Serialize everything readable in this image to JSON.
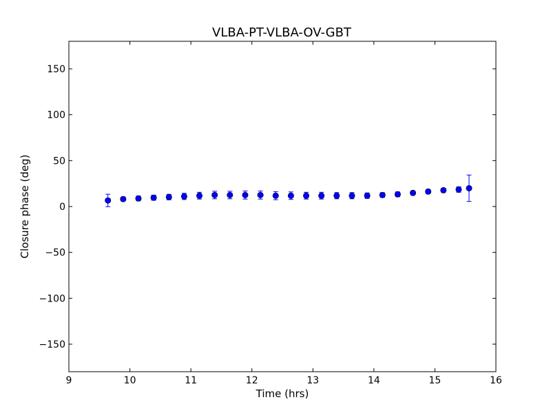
{
  "chart_data": {
    "type": "scatter",
    "title": "VLBA-PT-VLBA-OV-GBT",
    "xlabel": "Time (hrs)",
    "ylabel": "Closure phase (deg)",
    "xlim": [
      9,
      16
    ],
    "ylim": [
      -180,
      180
    ],
    "xticks": [
      9,
      10,
      11,
      12,
      13,
      14,
      15,
      16
    ],
    "yticks": [
      -150,
      -100,
      -50,
      0,
      50,
      100,
      150
    ],
    "xtick_labels": [
      "9",
      "10",
      "11",
      "12",
      "13",
      "14",
      "15",
      "16"
    ],
    "ytick_labels": [
      "−150",
      "−100",
      "−50",
      "0",
      "50",
      "100",
      "150"
    ],
    "grid": false,
    "marker_color": "#0000ff",
    "errorbar_color": "#0000ff",
    "series": [
      {
        "points": [
          {
            "x": 9.64,
            "y": 6.6,
            "err": 6.8
          },
          {
            "x": 9.89,
            "y": 8.1,
            "err": 2.2
          },
          {
            "x": 10.14,
            "y": 8.8,
            "err": 2.6
          },
          {
            "x": 10.39,
            "y": 9.6,
            "err": 2.8
          },
          {
            "x": 10.64,
            "y": 10.3,
            "err": 3.0
          },
          {
            "x": 10.89,
            "y": 11.0,
            "err": 3.4
          },
          {
            "x": 11.14,
            "y": 11.8,
            "err": 3.7
          },
          {
            "x": 11.39,
            "y": 12.5,
            "err": 4.1
          },
          {
            "x": 11.64,
            "y": 12.5,
            "err": 4.1
          },
          {
            "x": 11.89,
            "y": 12.5,
            "err": 4.4
          },
          {
            "x": 12.14,
            "y": 12.5,
            "err": 4.4
          },
          {
            "x": 12.39,
            "y": 11.8,
            "err": 4.4
          },
          {
            "x": 12.64,
            "y": 11.8,
            "err": 4.1
          },
          {
            "x": 12.89,
            "y": 11.8,
            "err": 3.7
          },
          {
            "x": 13.14,
            "y": 11.8,
            "err": 3.7
          },
          {
            "x": 13.39,
            "y": 11.8,
            "err": 3.4
          },
          {
            "x": 13.64,
            "y": 11.8,
            "err": 3.4
          },
          {
            "x": 13.89,
            "y": 11.8,
            "err": 3.0
          },
          {
            "x": 14.14,
            "y": 12.5,
            "err": 2.6
          },
          {
            "x": 14.39,
            "y": 13.3,
            "err": 2.6
          },
          {
            "x": 14.64,
            "y": 14.8,
            "err": 2.2
          },
          {
            "x": 14.89,
            "y": 16.3,
            "err": 2.2
          },
          {
            "x": 15.14,
            "y": 17.7,
            "err": 2.2
          },
          {
            "x": 15.39,
            "y": 18.5,
            "err": 3.0
          },
          {
            "x": 15.56,
            "y": 19.9,
            "err": 14.4
          }
        ]
      }
    ]
  }
}
